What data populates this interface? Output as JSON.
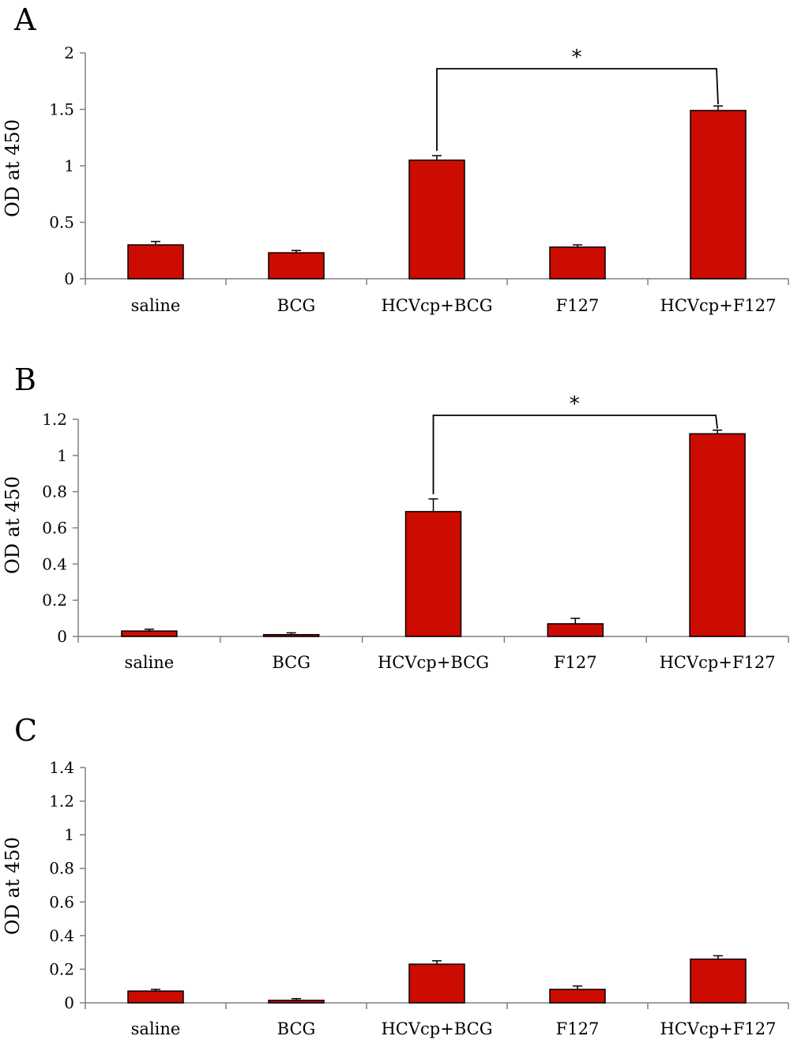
{
  "colors": {
    "bar_fill": "#cc0c00",
    "bar_stroke": "#000000",
    "axis": "#808080",
    "text": "#000000"
  },
  "chart_data": [
    {
      "type": "bar",
      "panel": "A",
      "ylabel": "OD at 450",
      "ylim": [
        0,
        2
      ],
      "yticks": [
        "0",
        "0.5",
        "1",
        "1.5",
        "2"
      ],
      "ytick_values": [
        0,
        0.5,
        1,
        1.5,
        2
      ],
      "categories": [
        "saline",
        "BCG",
        "HCVcp+BCG",
        "F127",
        "HCVcp+F127"
      ],
      "values": [
        0.3,
        0.23,
        1.05,
        0.28,
        1.49
      ],
      "errors": [
        0.03,
        0.02,
        0.04,
        0.02,
        0.04
      ],
      "significance": {
        "from": "HCVcp+BCG",
        "to": "HCVcp+F127",
        "label": "*",
        "bracket_y": 1.86
      }
    },
    {
      "type": "bar",
      "panel": "B",
      "ylabel": "OD at 450",
      "ylim": [
        0,
        1.2
      ],
      "yticks": [
        "0",
        "0.2",
        "0.4",
        "0.6",
        "0.8",
        "1",
        "1.2"
      ],
      "ytick_values": [
        0,
        0.2,
        0.4,
        0.6,
        0.8,
        1,
        1.2
      ],
      "categories": [
        "saline",
        "BCG",
        "HCVcp+BCG",
        "F127",
        "HCVcp+F127"
      ],
      "values": [
        0.03,
        0.01,
        0.69,
        0.07,
        1.12
      ],
      "errors": [
        0.01,
        0.01,
        0.07,
        0.03,
        0.02
      ],
      "significance": {
        "from": "HCVcp+BCG",
        "to": "HCVcp+F127",
        "label": "*",
        "bracket_y": 1.2
      }
    },
    {
      "type": "bar",
      "panel": "C",
      "ylabel": "OD at 450",
      "ylim": [
        0,
        1.4
      ],
      "yticks": [
        "0",
        "0.2",
        "0.4",
        "0.6",
        "0.8",
        "1",
        "1.2",
        "1.4"
      ],
      "ytick_values": [
        0,
        0.2,
        0.4,
        0.6,
        0.8,
        1,
        1.2,
        1.4
      ],
      "categories": [
        "saline",
        "BCG",
        "HCVcp+BCG",
        "F127",
        "HCVcp+F127"
      ],
      "values": [
        0.07,
        0.015,
        0.23,
        0.08,
        0.26
      ],
      "errors": [
        0.01,
        0.01,
        0.02,
        0.02,
        0.02
      ]
    }
  ]
}
